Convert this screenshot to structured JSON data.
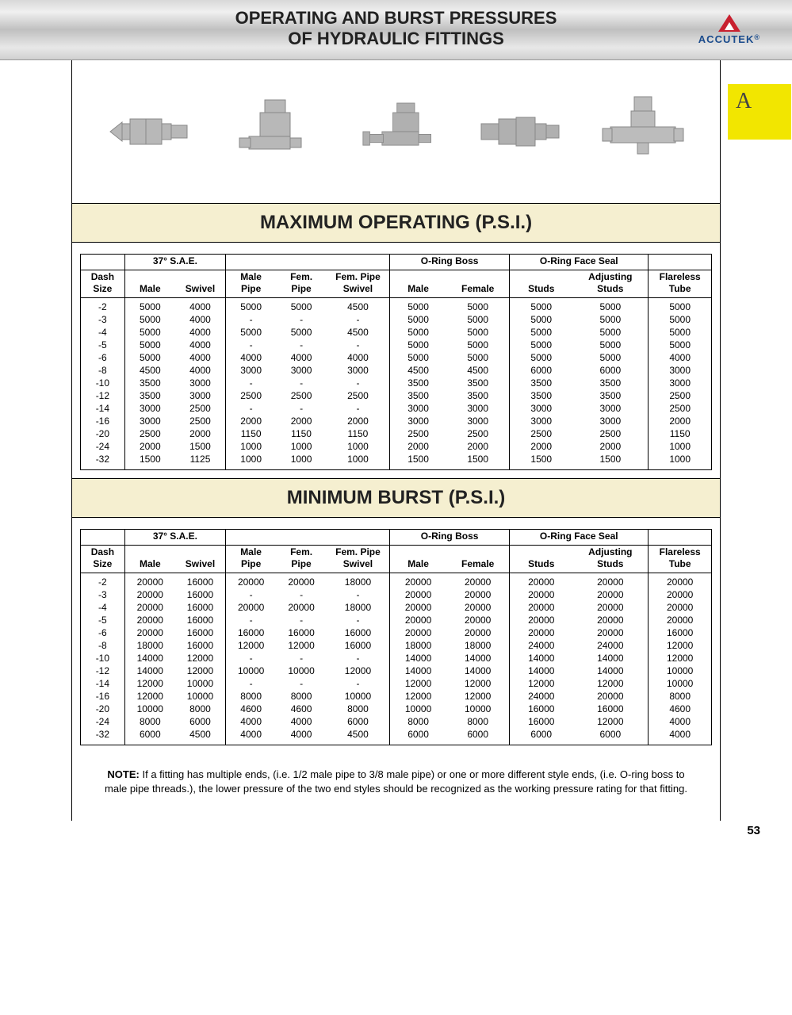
{
  "header": {
    "title_line1": "OPERATING AND BURST PRESSURES",
    "title_line2": "OF HYDRAULIC FITTINGS",
    "logo_text": "ACCUTEK",
    "logo_reg": "®",
    "logo_triangle_color": "#c8202f",
    "logo_text_color": "#1a4b8c"
  },
  "side_tab": {
    "letter": "A",
    "bg": "#f2e600"
  },
  "section1_title": "MAXIMUM OPERATING (P.S.I.)",
  "section2_title": "MINIMUM BURST (P.S.I.)",
  "columns": {
    "dash_size": "Dash\nSize",
    "sae_group": "37° S.A.E.",
    "sae_male": "Male",
    "sae_swivel": "Swivel",
    "male_pipe": "Male\nPipe",
    "fem_pipe": "Fem.\nPipe",
    "fem_pipe_swivel": "Fem. Pipe\nSwivel",
    "oring_boss_group": "O-Ring Boss",
    "oring_boss_male": "Male",
    "oring_boss_female": "Female",
    "oring_face_group": "O-Ring Face Seal",
    "oring_face_studs": "Studs",
    "oring_face_adj": "Adjusting\nStuds",
    "flareless": "Flareless\nTube"
  },
  "operating_rows": [
    [
      "-2",
      "5000",
      "4000",
      "5000",
      "5000",
      "4500",
      "5000",
      "5000",
      "5000",
      "5000",
      "5000"
    ],
    [
      "-3",
      "5000",
      "4000",
      "-",
      "-",
      "-",
      "5000",
      "5000",
      "5000",
      "5000",
      "5000"
    ],
    [
      "-4",
      "5000",
      "4000",
      "5000",
      "5000",
      "4500",
      "5000",
      "5000",
      "5000",
      "5000",
      "5000"
    ],
    [
      "-5",
      "5000",
      "4000",
      "-",
      "-",
      "-",
      "5000",
      "5000",
      "5000",
      "5000",
      "5000"
    ],
    [
      "-6",
      "5000",
      "4000",
      "4000",
      "4000",
      "4000",
      "5000",
      "5000",
      "5000",
      "5000",
      "4000"
    ],
    [
      "-8",
      "4500",
      "4000",
      "3000",
      "3000",
      "3000",
      "4500",
      "4500",
      "6000",
      "6000",
      "3000"
    ],
    [
      "-10",
      "3500",
      "3000",
      "-",
      "-",
      "-",
      "3500",
      "3500",
      "3500",
      "3500",
      "3000"
    ],
    [
      "-12",
      "3500",
      "3000",
      "2500",
      "2500",
      "2500",
      "3500",
      "3500",
      "3500",
      "3500",
      "2500"
    ],
    [
      "-14",
      "3000",
      "2500",
      "-",
      "-",
      "-",
      "3000",
      "3000",
      "3000",
      "3000",
      "2500"
    ],
    [
      "-16",
      "3000",
      "2500",
      "2000",
      "2000",
      "2000",
      "3000",
      "3000",
      "3000",
      "3000",
      "2000"
    ],
    [
      "-20",
      "2500",
      "2000",
      "1150",
      "1150",
      "1150",
      "2500",
      "2500",
      "2500",
      "2500",
      "1150"
    ],
    [
      "-24",
      "2000",
      "1500",
      "1000",
      "1000",
      "1000",
      "2000",
      "2000",
      "2000",
      "2000",
      "1000"
    ],
    [
      "-32",
      "1500",
      "1125",
      "1000",
      "1000",
      "1000",
      "1500",
      "1500",
      "1500",
      "1500",
      "1000"
    ]
  ],
  "burst_rows": [
    [
      "-2",
      "20000",
      "16000",
      "20000",
      "20000",
      "18000",
      "20000",
      "20000",
      "20000",
      "20000",
      "20000"
    ],
    [
      "-3",
      "20000",
      "16000",
      "-",
      "-",
      "-",
      "20000",
      "20000",
      "20000",
      "20000",
      "20000"
    ],
    [
      "-4",
      "20000",
      "16000",
      "20000",
      "20000",
      "18000",
      "20000",
      "20000",
      "20000",
      "20000",
      "20000"
    ],
    [
      "-5",
      "20000",
      "16000",
      "-",
      "-",
      "-",
      "20000",
      "20000",
      "20000",
      "20000",
      "20000"
    ],
    [
      "-6",
      "20000",
      "16000",
      "16000",
      "16000",
      "16000",
      "20000",
      "20000",
      "20000",
      "20000",
      "16000"
    ],
    [
      "-8",
      "18000",
      "16000",
      "12000",
      "12000",
      "16000",
      "18000",
      "18000",
      "24000",
      "24000",
      "12000"
    ],
    [
      "-10",
      "14000",
      "12000",
      "-",
      "-",
      "-",
      "14000",
      "14000",
      "14000",
      "14000",
      "12000"
    ],
    [
      "-12",
      "14000",
      "12000",
      "10000",
      "10000",
      "12000",
      "14000",
      "14000",
      "14000",
      "14000",
      "10000"
    ],
    [
      "-14",
      "12000",
      "10000",
      "-",
      "-",
      "-",
      "12000",
      "12000",
      "12000",
      "12000",
      "10000"
    ],
    [
      "-16",
      "12000",
      "10000",
      "8000",
      "8000",
      "10000",
      "12000",
      "12000",
      "24000",
      "20000",
      "8000"
    ],
    [
      "-20",
      "10000",
      "8000",
      "4600",
      "4600",
      "8000",
      "10000",
      "10000",
      "16000",
      "16000",
      "4600"
    ],
    [
      "-24",
      "8000",
      "6000",
      "4000",
      "4000",
      "6000",
      "8000",
      "8000",
      "16000",
      "12000",
      "4000"
    ],
    [
      "-32",
      "6000",
      "4500",
      "4000",
      "4000",
      "4500",
      "6000",
      "6000",
      "6000",
      "6000",
      "4000"
    ]
  ],
  "note": {
    "label": "NOTE:",
    "text": "If a fitting has multiple ends, (i.e. 1/2 male pipe to 3/8 male pipe) or one or more different style ends, (i.e. O-ring boss to male pipe threads.), the lower pressure of the two end styles should be recognized as the working pressure rating for that fitting."
  },
  "page_number": "53",
  "styling": {
    "band_bg": "#f5efd0",
    "header_gradient": [
      "#d8d8d8",
      "#f0f0f0",
      "#c0c0c0",
      "#e8e8e8",
      "#d0d0d0"
    ],
    "table_font_size": 12,
    "title_font_size": 24,
    "border_color": "#000000"
  }
}
